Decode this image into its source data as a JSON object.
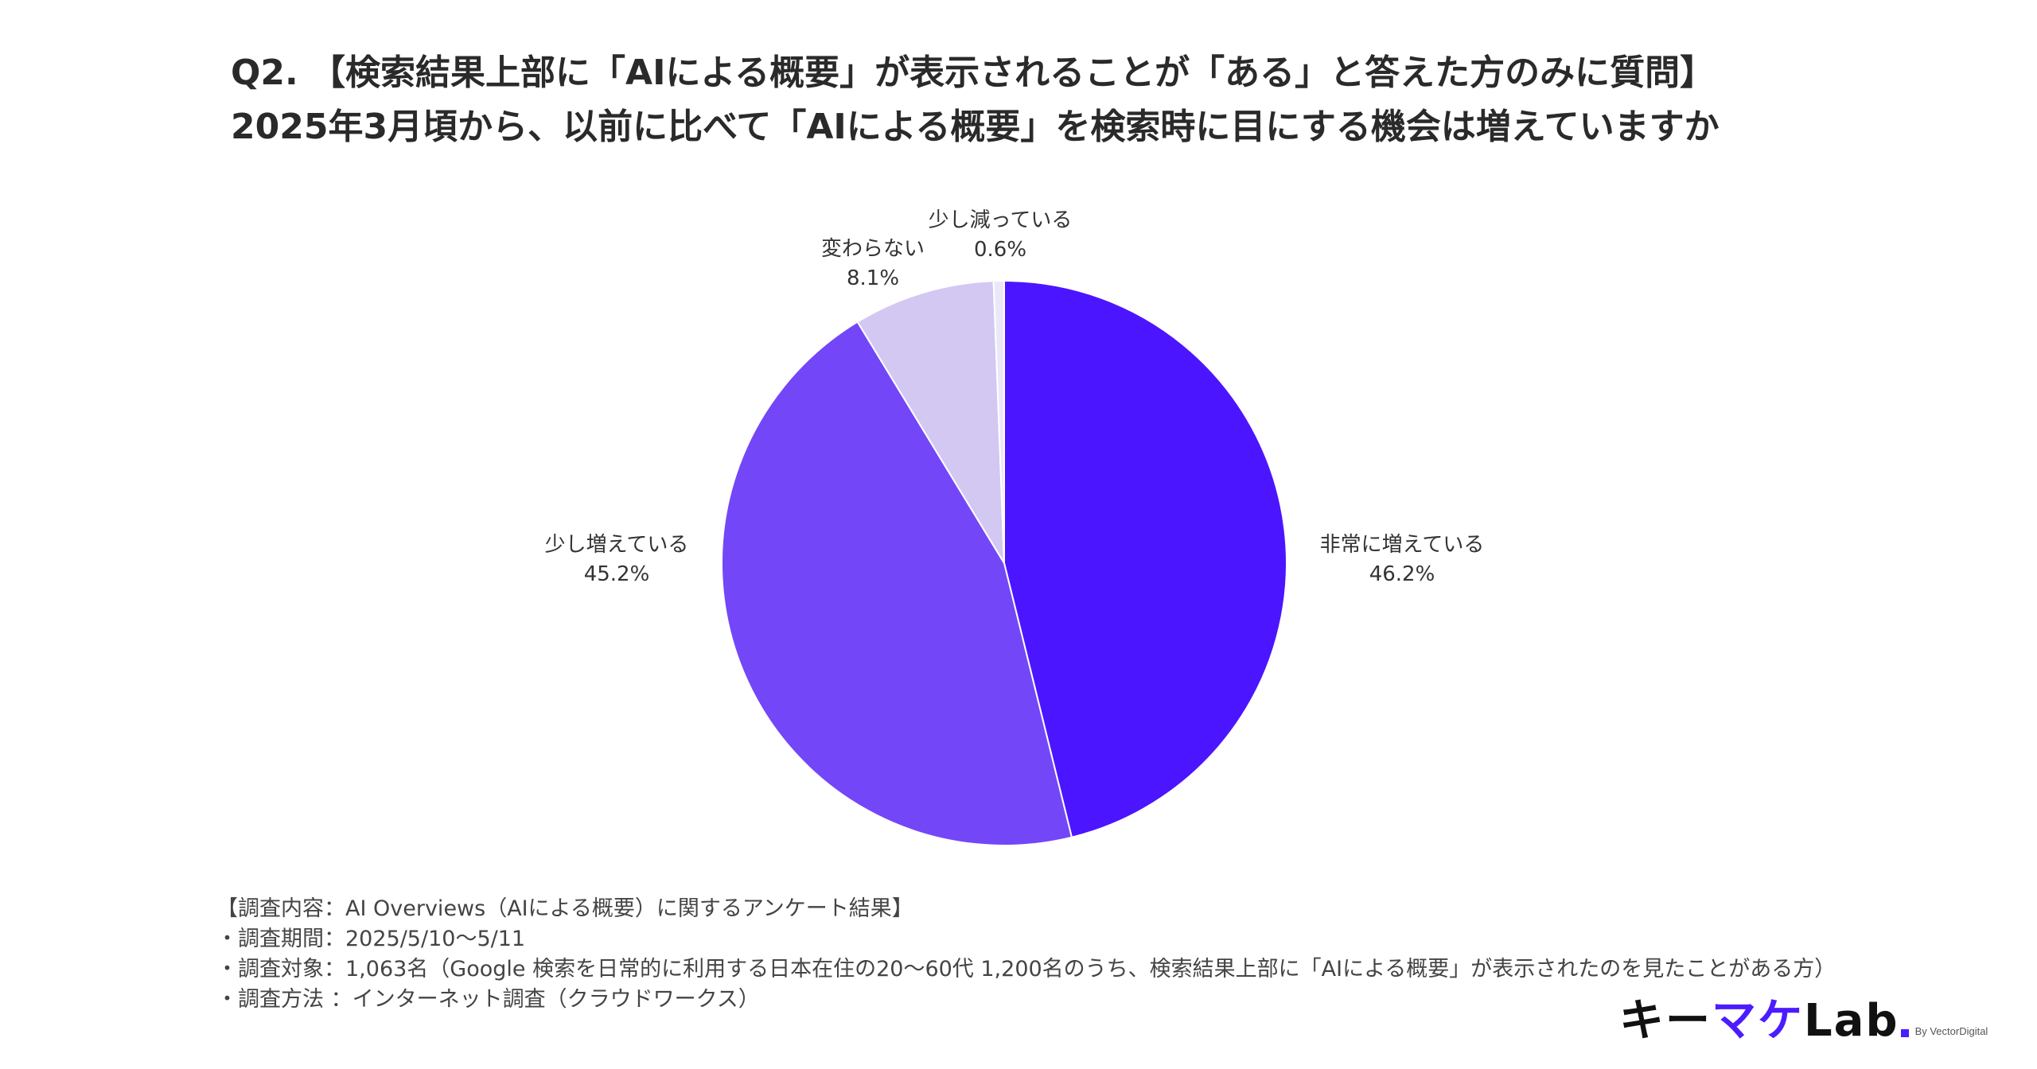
{
  "title": {
    "line1": "Q2. 【検索結果上部に「AIによる概要」が表示されることが「ある」と答えた方のみに質問】",
    "line2": "2025年3月頃から、以前に比べて「AIによる概要」を検索時に目にする機会は増えていますか"
  },
  "chart_data": {
    "type": "pie",
    "slices": [
      {
        "label": "非常に増えている",
        "value": 46.2,
        "display": "46.2%",
        "color": "#4c15ff"
      },
      {
        "label": "少し増えている",
        "value": 45.2,
        "display": "45.2%",
        "color": "#7347f7"
      },
      {
        "label": "変わらない",
        "value": 8.1,
        "display": "8.1%",
        "color": "#d3c8f2"
      },
      {
        "label": "少し減っている",
        "value": 0.6,
        "display": "0.6%",
        "color": "#ece7f8"
      }
    ],
    "start": "12 o'clock",
    "direction": "clockwise",
    "legend": "none"
  },
  "notes": [
    "【調査内容：AI Overviews（AIによる概要）に関するアンケート結果】",
    "・調査期間：2025/5/10〜5/11",
    "・調査対象：1,063名（Google 検索を日常的に利用する日本在住の20〜60代 1,200名のうち、検索結果上部に「AIによる概要」が表示されたのを見たことがある方）",
    "・調査方法 ：インターネット調査（クラウドワークス）"
  ],
  "logo": {
    "text_prefix": "キー",
    "text_accent": "マケ",
    "text_suffix": "Lab",
    "byline": "By VectorDigital",
    "accent_color": "#4b1cff"
  }
}
